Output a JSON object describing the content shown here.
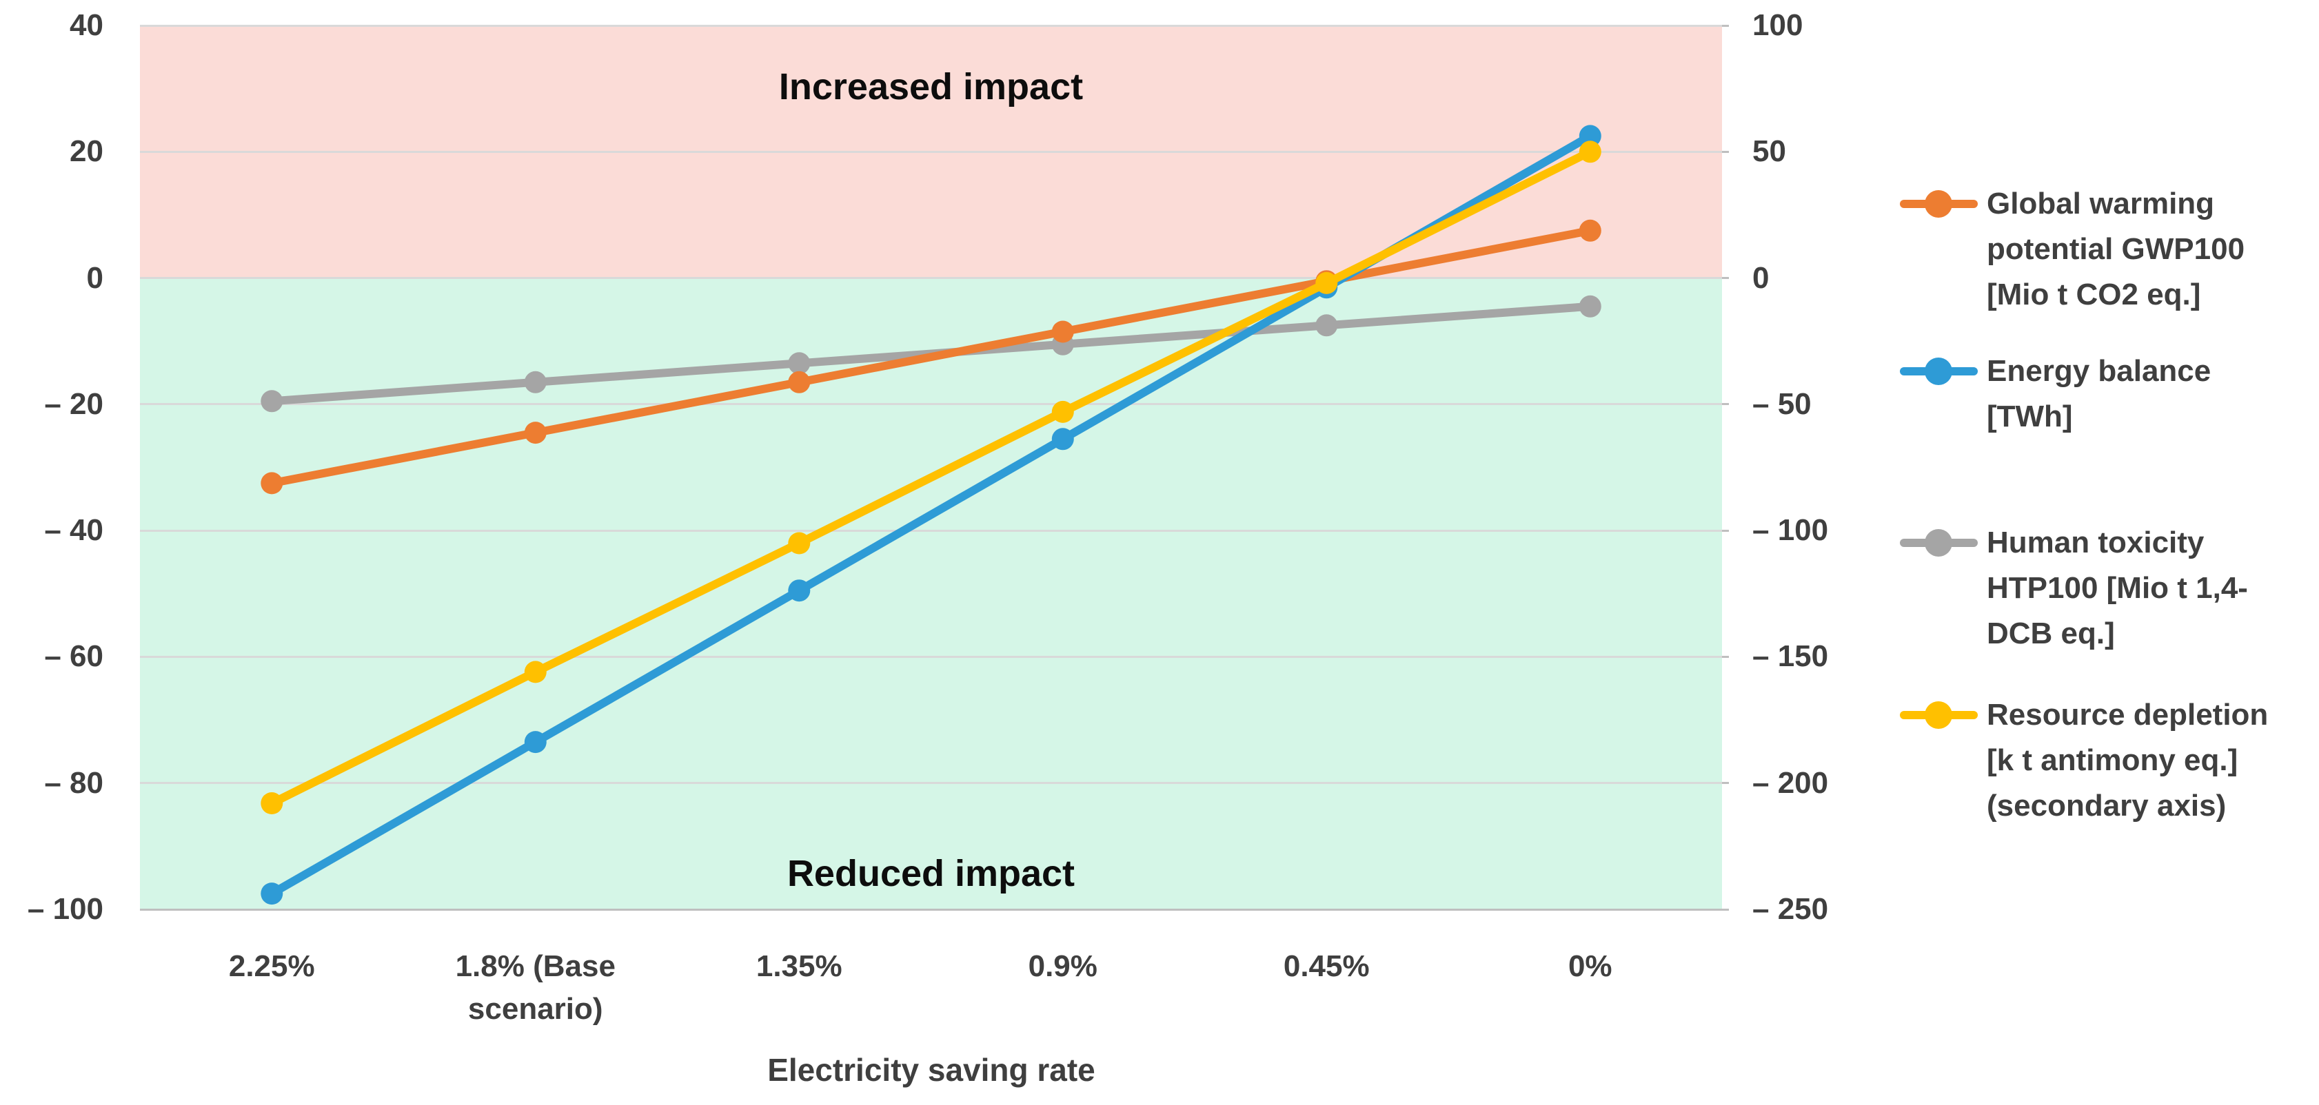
{
  "chart_data": {
    "type": "line",
    "title": "",
    "xlabel": "Electricity saving rate",
    "categories": [
      "2.25%",
      "1.8% (Base scenario)",
      "1.35%",
      "0.9%",
      "0.45%",
      "0%"
    ],
    "x_tick_lines": [
      [
        "2.25%"
      ],
      [
        "1.8% (Base",
        "scenario)"
      ],
      [
        "1.35%"
      ],
      [
        "0.9%"
      ],
      [
        "0.45%"
      ],
      [
        "0%"
      ]
    ],
    "y_axis_left": {
      "max": 40,
      "min": -100,
      "ticks": [
        {
          "value": 40,
          "label": "40"
        },
        {
          "value": 20,
          "label": "20"
        },
        {
          "value": 0,
          "label": "0"
        },
        {
          "value": -20,
          "label": "– 20"
        },
        {
          "value": -40,
          "label": "– 40"
        },
        {
          "value": -60,
          "label": "– 60"
        },
        {
          "value": -80,
          "label": "– 80"
        },
        {
          "value": -100,
          "label": "– 100"
        }
      ]
    },
    "y_axis_right": {
      "max": 100,
      "min": -250,
      "ticks": [
        {
          "value": 100,
          "label": "100"
        },
        {
          "value": 50,
          "label": "50"
        },
        {
          "value": 0,
          "label": "0"
        },
        {
          "value": -50,
          "label": "– 50"
        },
        {
          "value": -100,
          "label": "– 100"
        },
        {
          "value": -150,
          "label": "– 150"
        },
        {
          "value": -200,
          "label": "– 200"
        },
        {
          "value": -250,
          "label": "– 250"
        }
      ]
    },
    "annotations": {
      "increased_impact": "Increased impact",
      "reduced_impact": "Reduced impact"
    },
    "regions": {
      "increased_fill": "#fbdcd7",
      "reduced_fill": "#d5f6e7"
    },
    "grid_color": "#d9d9d9",
    "axis_line_color": "#bfbfbf",
    "text_color": "#3f3f3f",
    "series": [
      {
        "name": "Global warming potential GWP100 [Mio t CO2 eq.]",
        "legend_lines": [
          "Global warming",
          "potential GWP100",
          "[Mio t CO2 eq.]"
        ],
        "axis": "left",
        "color": "#ED7D31",
        "values": [
          -32.5,
          -24.5,
          -16.5,
          -8.5,
          -0.5,
          7.5
        ]
      },
      {
        "name": "Energy balance [TWh]",
        "legend_lines": [
          "Energy balance",
          "[TWh]"
        ],
        "axis": "left",
        "color": "#2E9BD6",
        "values": [
          -97.5,
          -73.5,
          -49.5,
          -25.5,
          -1.5,
          22.5
        ]
      },
      {
        "name": "Human toxicity HTP100 [Mio t 1,4-DCB eq.]",
        "legend_lines": [
          "Human toxicity",
          "HTP100 [Mio t 1,4-",
          "DCB eq.]"
        ],
        "axis": "left",
        "color": "#A5A5A5",
        "values": [
          -19.5,
          -16.5,
          -13.5,
          -10.5,
          -7.5,
          -4.5
        ]
      },
      {
        "name": "Resource depletion [k t antimony eq.] (secondary axis)",
        "legend_lines": [
          "Resource depletion",
          "[k t antimony eq.]",
          "(secondary axis)"
        ],
        "axis": "right",
        "color": "#FFC000",
        "values": [
          -208,
          -156,
          -105,
          -53,
          -2,
          50
        ]
      }
    ],
    "legend_position": "right",
    "grid": true
  }
}
